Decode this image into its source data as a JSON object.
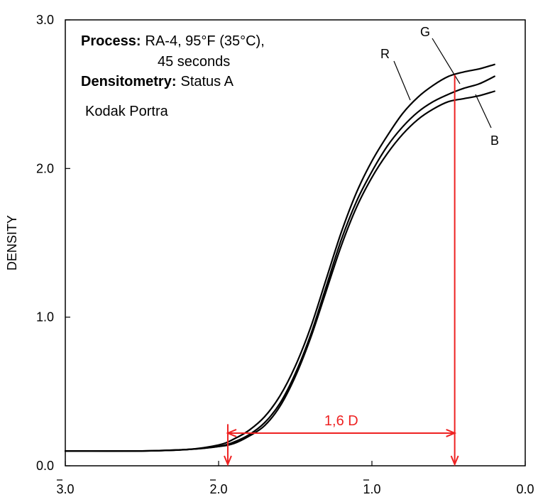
{
  "chart_data": {
    "type": "line",
    "ylabel": "DENSITY",
    "xlim": [
      -3.0,
      0.0
    ],
    "ylim": [
      0.0,
      3.0
    ],
    "x_ticks": [
      {
        "value": -3.0,
        "label": "3.0",
        "bar": true
      },
      {
        "value": -2.0,
        "label": "2.0",
        "bar": true
      },
      {
        "value": -1.0,
        "label": "1.0",
        "bar": true
      },
      {
        "value": 0.0,
        "label": "0.0",
        "bar": false
      }
    ],
    "y_ticks": [
      {
        "value": 0.0,
        "label": "0.0"
      },
      {
        "value": 1.0,
        "label": "1.0"
      },
      {
        "value": 2.0,
        "label": "2.0"
      },
      {
        "value": 3.0,
        "label": "3.0"
      }
    ],
    "grid": false,
    "annotations": {
      "process_label": "Process:",
      "process_value": "RA-4, 95°F (35°C),",
      "process_value_2": "45 seconds",
      "densitometry_label": "Densitometry:",
      "densitometry_value": "Status A",
      "film": "Kodak Portra"
    },
    "series": [
      {
        "name": "R",
        "color": "#000000",
        "x": [
          -3.0,
          -2.5,
          -2.2,
          -2.0,
          -1.9,
          -1.8,
          -1.7,
          -1.6,
          -1.5,
          -1.4,
          -1.3,
          -1.2,
          -1.1,
          -1.0,
          -0.9,
          -0.8,
          -0.7,
          -0.6,
          -0.5,
          -0.4,
          -0.3,
          -0.2
        ],
        "y": [
          0.1,
          0.1,
          0.11,
          0.14,
          0.18,
          0.24,
          0.33,
          0.47,
          0.67,
          0.93,
          1.25,
          1.57,
          1.84,
          2.05,
          2.22,
          2.37,
          2.48,
          2.56,
          2.62,
          2.65,
          2.67,
          2.7
        ]
      },
      {
        "name": "G",
        "color": "#000000",
        "x": [
          -3.0,
          -2.5,
          -2.2,
          -2.0,
          -1.9,
          -1.8,
          -1.7,
          -1.6,
          -1.5,
          -1.4,
          -1.3,
          -1.2,
          -1.1,
          -1.0,
          -0.9,
          -0.8,
          -0.7,
          -0.6,
          -0.5,
          -0.4,
          -0.3,
          -0.2
        ],
        "y": [
          0.1,
          0.1,
          0.11,
          0.13,
          0.16,
          0.21,
          0.29,
          0.42,
          0.62,
          0.88,
          1.2,
          1.52,
          1.78,
          1.98,
          2.15,
          2.28,
          2.38,
          2.45,
          2.5,
          2.54,
          2.57,
          2.62
        ]
      },
      {
        "name": "B",
        "color": "#000000",
        "x": [
          -3.0,
          -2.5,
          -2.2,
          -2.0,
          -1.9,
          -1.8,
          -1.7,
          -1.6,
          -1.5,
          -1.4,
          -1.3,
          -1.2,
          -1.1,
          -1.0,
          -0.9,
          -0.8,
          -0.7,
          -0.6,
          -0.5,
          -0.4,
          -0.3,
          -0.2
        ],
        "y": [
          0.1,
          0.1,
          0.11,
          0.13,
          0.15,
          0.2,
          0.27,
          0.4,
          0.6,
          0.86,
          1.17,
          1.48,
          1.74,
          1.94,
          2.1,
          2.23,
          2.33,
          2.4,
          2.45,
          2.47,
          2.49,
          2.52
        ]
      }
    ],
    "measurement": {
      "color": "#ee2222",
      "label": "1,6 D",
      "x_start": -1.94,
      "x_end": -0.46,
      "y_level": 0.22,
      "left_line_from": 0.28,
      "left_line_to": 0.0,
      "right_line_from": 2.63,
      "right_line_to": 0.0
    }
  }
}
